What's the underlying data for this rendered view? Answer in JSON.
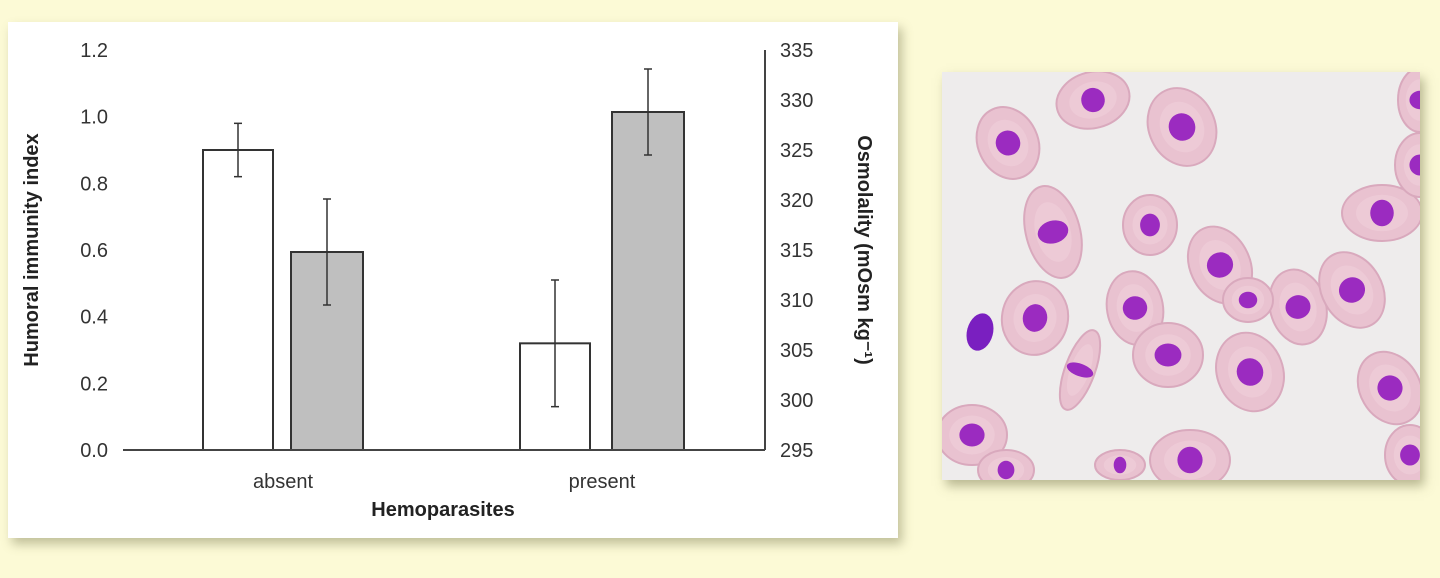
{
  "chart_data": {
    "type": "bar",
    "categories": [
      "absent",
      "present"
    ],
    "xlabel": "Hemoparasites",
    "ylabel": "Humoral immunity index",
    "ylabel_right": "Osmolality (mOsm kg⁻¹)",
    "ylim": [
      0,
      1.2
    ],
    "ylim_right": [
      295,
      335
    ],
    "yticks": [
      "0.0",
      "0.2",
      "0.4",
      "0.6",
      "0.8",
      "1.0",
      "1.2"
    ],
    "yticks_right": [
      "295",
      "300",
      "305",
      "310",
      "315",
      "320",
      "325",
      "330",
      "335"
    ],
    "series": [
      {
        "axis": "left",
        "color": "#ffffff",
        "values": [
          0.9,
          0.32
        ],
        "errors": [
          0.08,
          0.19
        ]
      },
      {
        "axis": "right",
        "color": "#bfbfbf",
        "values": [
          314.8,
          328.8
        ],
        "errors": [
          5.3,
          4.3
        ]
      }
    ],
    "grid": false,
    "legend": "none"
  },
  "colors": {
    "background": "#fcfad6",
    "bar_open": "#ffffff",
    "bar_filled": "#bfbfbf",
    "cell": "#e9c2d0",
    "nucleus": "#9b2bc0"
  },
  "image": {
    "subject": "blood-smear-micrograph"
  }
}
